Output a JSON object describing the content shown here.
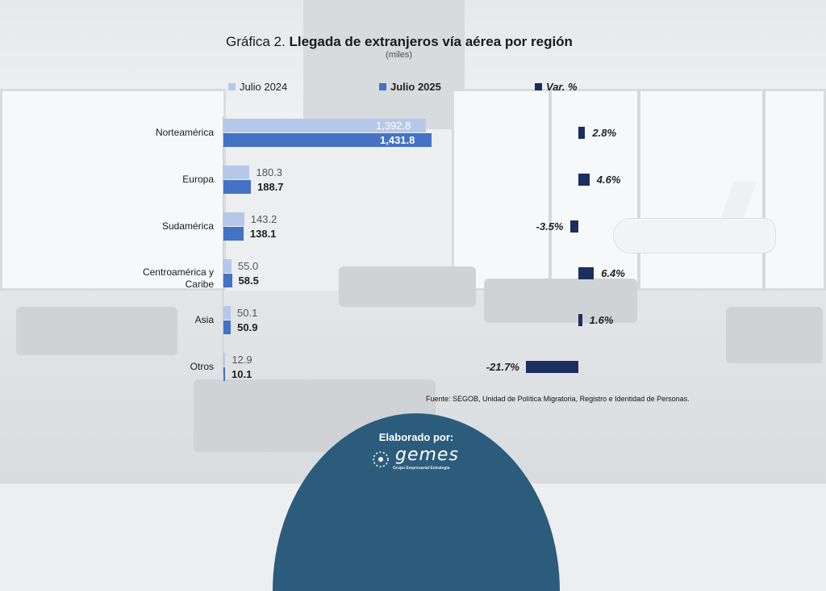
{
  "title_prefix": "Gráfica 2.",
  "title_main": "Llegada de extranjeros vía aérea por región",
  "subtitle": "(miles)",
  "legend": {
    "j24": "Julio 2024",
    "j25": "Julio 2025",
    "var": "Var. %"
  },
  "colors": {
    "j24": "#b6c8ea",
    "j25": "#4472c4",
    "var": "#1b2f5e",
    "footer": "#2b5c7b"
  },
  "chart_data": {
    "type": "bar",
    "orientation": "horizontal",
    "title": "Gráfica 2. Llegada de extranjeros vía aérea por región",
    "unit": "miles",
    "categories": [
      "Norteamérica",
      "Europa",
      "Sudamérica",
      "Centroamérica y Caribe",
      "Asia",
      "Otros"
    ],
    "category_lines": [
      [
        "Norteamérica"
      ],
      [
        "Europa"
      ],
      [
        "Sudamérica"
      ],
      [
        "Centroamérica y",
        "Caribe"
      ],
      [
        "Asia"
      ],
      [
        "Otros"
      ]
    ],
    "series": [
      {
        "name": "Julio 2024",
        "values": [
          1392.8,
          180.3,
          143.2,
          55.0,
          50.1,
          12.9
        ],
        "labels": [
          "1,392.8",
          "180.3",
          "143.2",
          "55.0",
          "50.1",
          "12.9"
        ]
      },
      {
        "name": "Julio 2025",
        "values": [
          1431.8,
          188.7,
          138.1,
          58.5,
          50.9,
          10.1
        ],
        "labels": [
          "1,431.8",
          "188.7",
          "138.1",
          "58.5",
          "50.9",
          "10.1"
        ]
      }
    ],
    "variation": {
      "name": "Var. %",
      "values": [
        2.8,
        4.6,
        -3.5,
        6.4,
        1.6,
        -21.7
      ],
      "labels": [
        "2.8%",
        "4.6%",
        "-3.5%",
        "6.4%",
        "1.6%",
        "-21.7%"
      ]
    },
    "legend_position": "top"
  },
  "source": "Fuente: SEGOB, Unidad de Política Migratoria, Registro e Identidad de Personas.",
  "footer": {
    "made_by": "Elaborado por:",
    "logo_text": "gemes",
    "logo_sub": "Grupo Empresarial Estrategia"
  }
}
